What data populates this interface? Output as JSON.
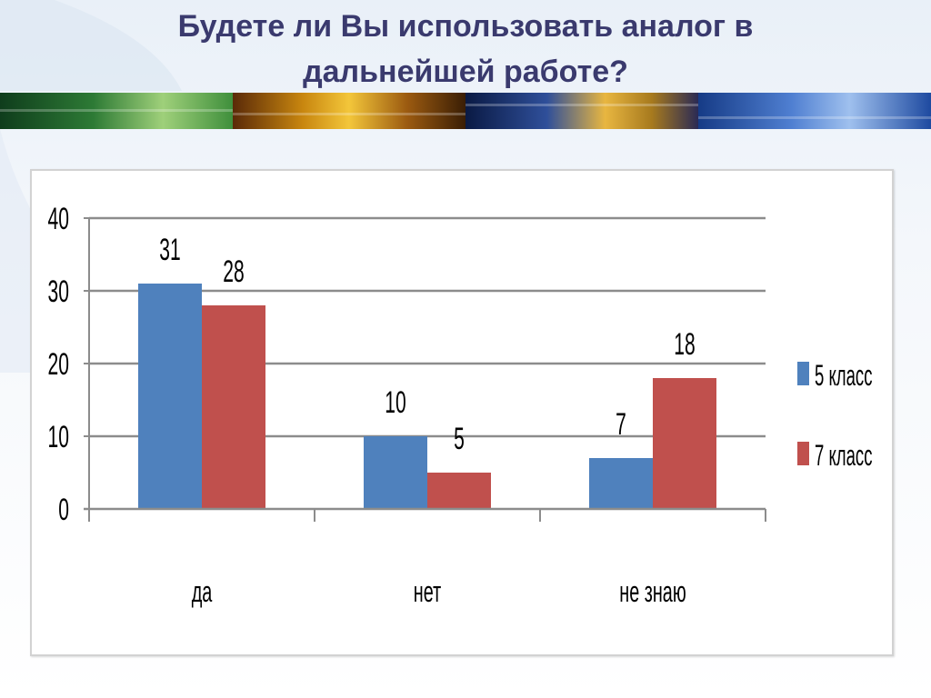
{
  "slide": {
    "title_line1": "Будете ли Вы использовать аналог в",
    "title_line2": "дальнейшей работе?"
  },
  "chart_data": {
    "type": "bar",
    "title": "",
    "xlabel": "",
    "ylabel": "",
    "categories": [
      "да",
      "нет",
      "не знаю"
    ],
    "series": [
      {
        "name": "5 класс",
        "values": [
          31,
          10,
          7
        ],
        "color": "#4f81bd"
      },
      {
        "name": "7 класс",
        "values": [
          28,
          5,
          18
        ],
        "color": "#c0504d"
      }
    ],
    "ylim": [
      0,
      40
    ],
    "yticks": [
      "0",
      "10",
      "20",
      "30",
      "40"
    ],
    "grid": true,
    "legend_position": "right"
  }
}
